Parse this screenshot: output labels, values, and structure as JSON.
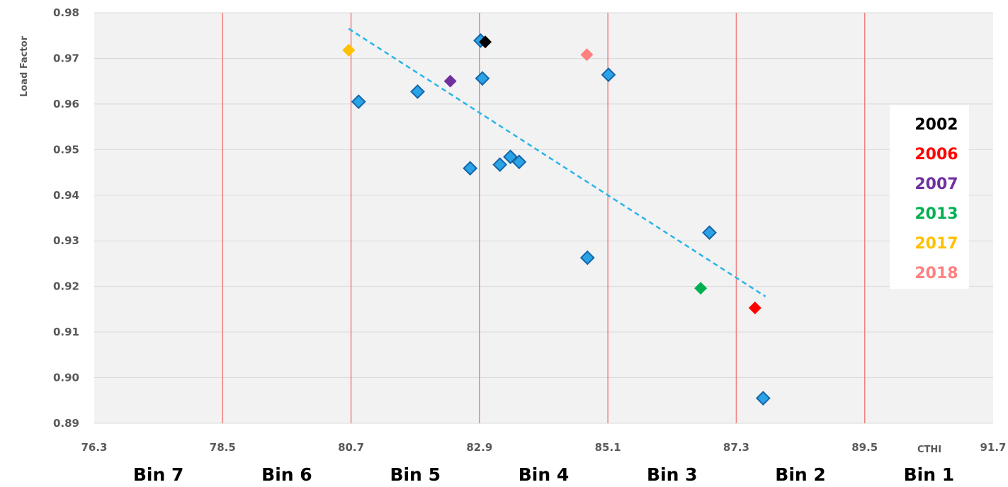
{
  "chart_data": {
    "type": "scatter",
    "title": "",
    "xlabel": "CTHI",
    "ylabel": "Load Factor",
    "xlim": [
      76.3,
      91.7
    ],
    "ylim": [
      0.89,
      0.98
    ],
    "x_ticks": [
      "76.3",
      "78.5",
      "80.7",
      "82.9",
      "85.1",
      "87.3",
      "89.5",
      "91.7"
    ],
    "y_ticks": [
      "0.89",
      "0.90",
      "0.91",
      "0.92",
      "0.93",
      "0.94",
      "0.95",
      "0.96",
      "0.97",
      "0.98"
    ],
    "vertical_reference_lines": [
      78.5,
      80.7,
      82.9,
      85.1,
      87.3,
      89.5
    ],
    "grid": "horizontal",
    "bins": [
      "Bin 7",
      "Bin 6",
      "Bin 5",
      "Bin 4",
      "Bin 3",
      "Bin 2",
      "Bin 1"
    ],
    "series": [
      {
        "color": "#29A3E6",
        "points": [
          [
            80.83,
            0.9605
          ],
          [
            81.84,
            0.9627
          ],
          [
            82.74,
            0.9459
          ],
          [
            82.92,
            0.9739
          ],
          [
            82.95,
            0.9656
          ],
          [
            83.25,
            0.9467
          ],
          [
            83.43,
            0.9484
          ],
          [
            83.58,
            0.9473
          ],
          [
            84.75,
            0.9263
          ],
          [
            85.11,
            0.9664
          ],
          [
            86.84,
            0.9318
          ],
          [
            87.76,
            0.8955
          ]
        ]
      },
      {
        "name": "2002",
        "color": "#000000",
        "points": [
          [
            83.0,
            0.9736
          ]
        ]
      },
      {
        "name": "2006",
        "color": "#FF0000",
        "points": [
          [
            87.62,
            0.9153
          ]
        ]
      },
      {
        "name": "2007",
        "color": "#7030A0",
        "points": [
          [
            82.4,
            0.965
          ]
        ]
      },
      {
        "name": "2013",
        "color": "#00B050",
        "points": [
          [
            86.69,
            0.9196
          ]
        ]
      },
      {
        "name": "2017",
        "color": "#FFC000",
        "points": [
          [
            80.66,
            0.9718
          ]
        ]
      },
      {
        "name": "2018",
        "color": "#FF8080",
        "points": [
          [
            84.74,
            0.9708
          ]
        ]
      }
    ],
    "trendline": {
      "style": "dashed",
      "color": "#29B5E8",
      "from": [
        80.66,
        0.9765
      ],
      "to": [
        87.8,
        0.9178
      ]
    },
    "legend": {
      "position": "right",
      "entries": [
        {
          "label": "2002",
          "color": "#000000"
        },
        {
          "label": "2006",
          "color": "#FF0000"
        },
        {
          "label": "2007",
          "color": "#7030A0"
        },
        {
          "label": "2013",
          "color": "#00B050"
        },
        {
          "label": "2017",
          "color": "#FFC000"
        },
        {
          "label": "2018",
          "color": "#FF8080"
        }
      ]
    }
  }
}
